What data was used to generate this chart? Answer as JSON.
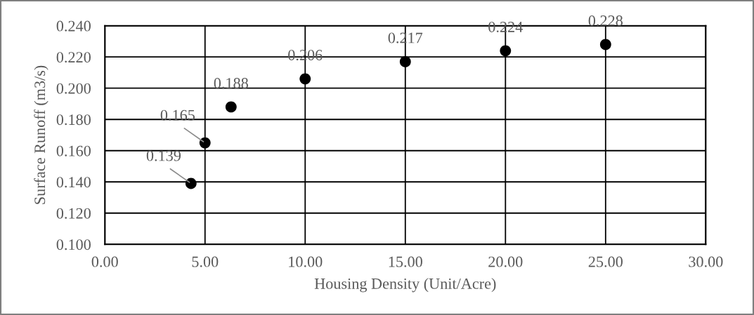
{
  "chart_data": {
    "type": "scatter",
    "xlabel": "Housing Density (Unit/Acre)",
    "ylabel": "Surface Runoff (m3/s)",
    "x": [
      4.3,
      5.0,
      6.3,
      10,
      15,
      20,
      25
    ],
    "series": [
      {
        "color": "#000000",
        "values": [
          0.139,
          0.165,
          0.188,
          0.206,
          0.217,
          0.224,
          0.228
        ]
      }
    ],
    "xlim": [
      0,
      30
    ],
    "ylim": [
      0.1,
      0.24
    ],
    "xticks": [
      {
        "value": 0,
        "label": "0.00"
      },
      {
        "value": 5,
        "label": "5.00"
      },
      {
        "value": 10,
        "label": "10.00"
      },
      {
        "value": 15,
        "label": "15.00"
      },
      {
        "value": 20,
        "label": "20.00"
      },
      {
        "value": 25,
        "label": "25.00"
      },
      {
        "value": 30,
        "label": "30.00"
      }
    ],
    "yticks": [
      {
        "value": 0.1,
        "label": "0.100"
      },
      {
        "value": 0.12,
        "label": "0.120"
      },
      {
        "value": 0.14,
        "label": "0.140"
      },
      {
        "value": 0.16,
        "label": "0.160"
      },
      {
        "value": 0.18,
        "label": "0.180"
      },
      {
        "value": 0.2,
        "label": "0.200"
      },
      {
        "value": 0.22,
        "label": "0.220"
      },
      {
        "value": 0.24,
        "label": "0.240"
      }
    ],
    "grid": true,
    "marker": "circle",
    "data_labels": true
  }
}
